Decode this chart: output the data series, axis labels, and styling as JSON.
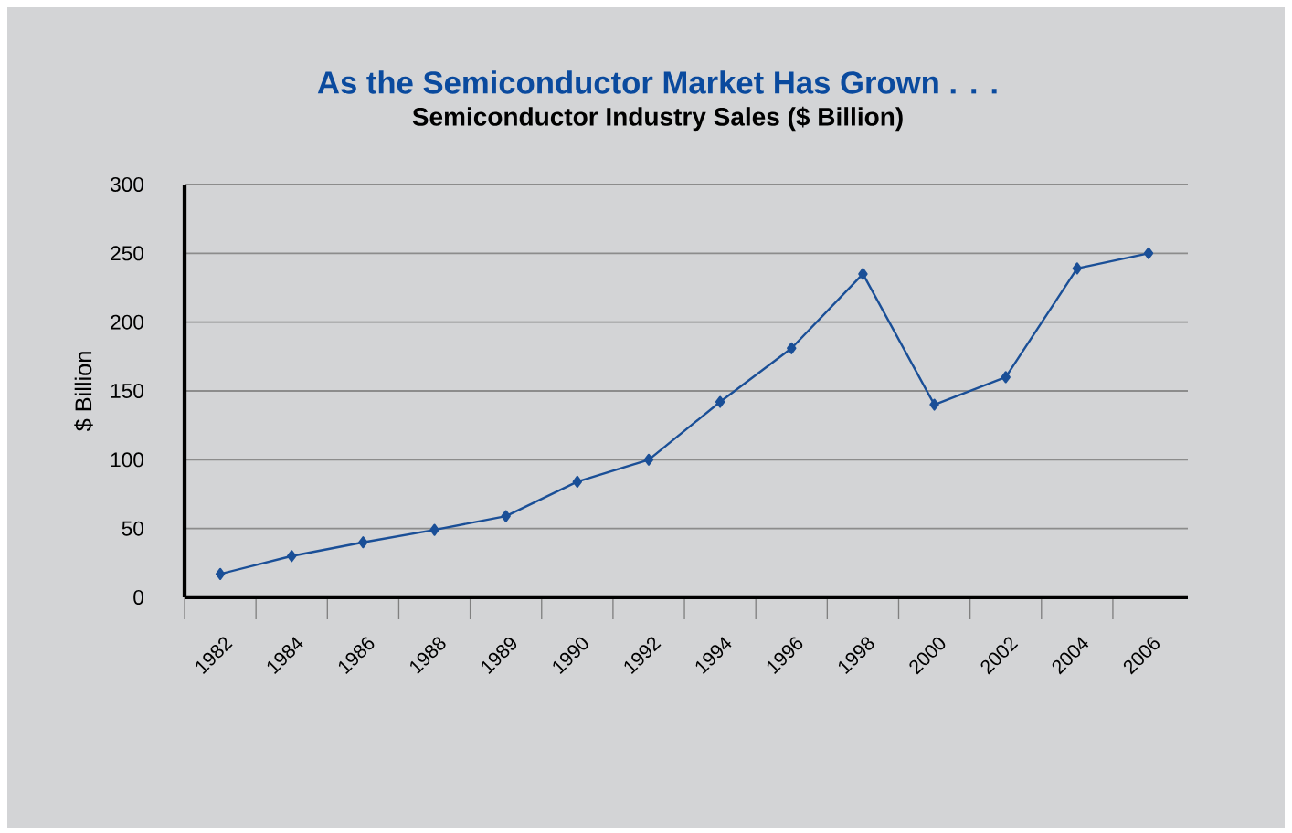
{
  "chart_data": {
    "type": "line",
    "title": "As the Semiconductor Market Has Grown . . .",
    "subtitle": "Semiconductor Industry Sales ($ Billion)",
    "ylabel": "$ Billion",
    "categories": [
      "1982",
      "1984",
      "1986",
      "1988",
      "1989",
      "1990",
      "1992",
      "1994",
      "1996",
      "1998",
      "2000",
      "2002",
      "2004",
      "2006"
    ],
    "values": [
      17,
      30,
      40,
      49,
      59,
      84,
      100,
      142,
      181,
      235,
      140,
      160,
      239,
      250
    ],
    "color": "#1a4f97",
    "ylim": [
      0,
      300
    ],
    "yticks": [
      0,
      50,
      100,
      150,
      200,
      250,
      300
    ],
    "grid": "y",
    "marker": "diamond",
    "line_style": "solid"
  }
}
